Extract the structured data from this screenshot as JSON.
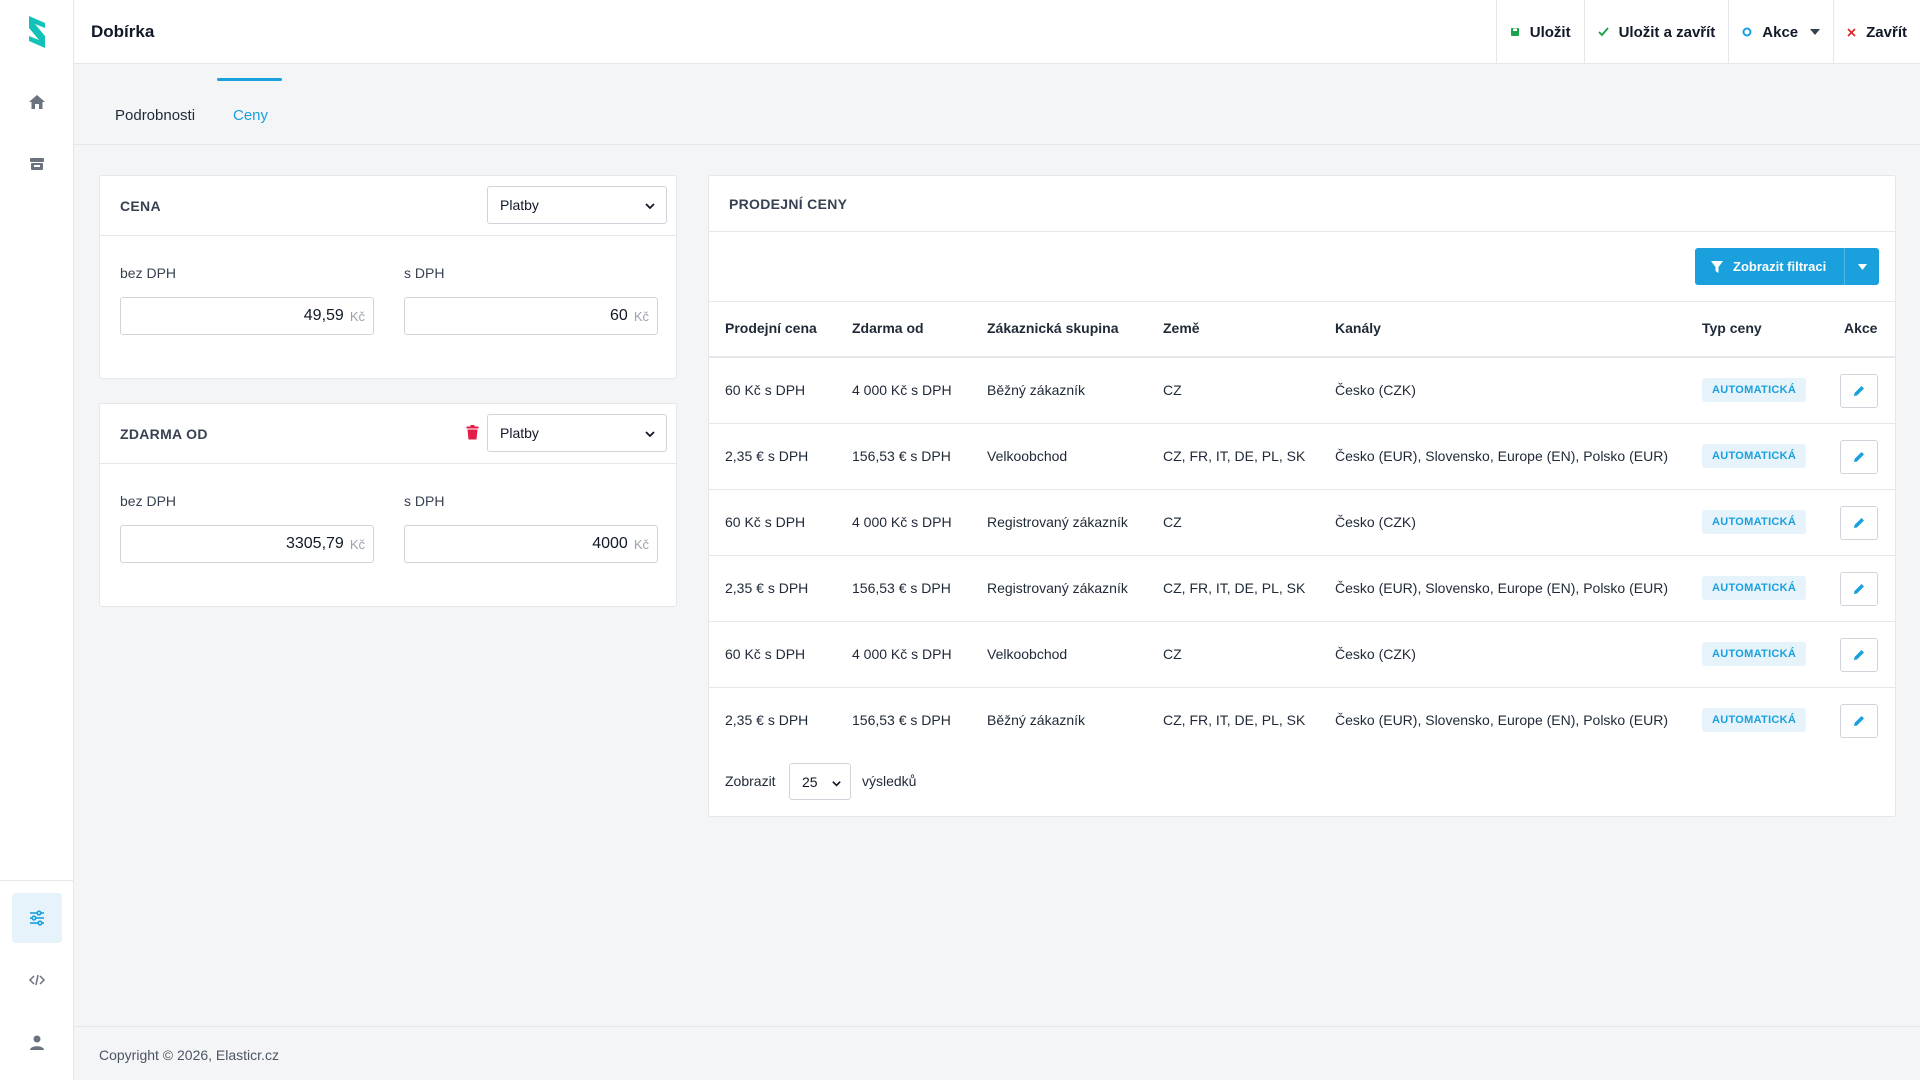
{
  "header": {
    "title": "Dobírka",
    "actions": {
      "save": "Uložit",
      "save_close": "Uložit a zavřít",
      "actions": "Akce",
      "close": "Zavřít"
    }
  },
  "tabs": [
    {
      "label": "Podrobnosti",
      "active": false
    },
    {
      "label": "Ceny",
      "active": true
    }
  ],
  "price_card": {
    "title": "CENA",
    "select": "Platby",
    "net_label": "bez DPH",
    "gross_label": "s DPH",
    "net_value": "49,59",
    "gross_value": "60",
    "unit": "Kč"
  },
  "free_card": {
    "title": "ZDARMA OD",
    "select": "Platby",
    "net_label": "bez DPH",
    "gross_label": "s DPH",
    "net_value": "3305,79",
    "gross_value": "4000",
    "unit": "Kč"
  },
  "sales_prices": {
    "title": "PRODEJNÍ CENY",
    "filter_button": "Zobrazit filtraci",
    "columns": [
      "Prodejní cena",
      "Zdarma od",
      "Zákaznická skupina",
      "Země",
      "Kanály",
      "Typ ceny",
      "Akce"
    ],
    "rows": [
      {
        "price": "60 Kč s DPH",
        "free_from": "4 000 Kč s DPH",
        "group": "Běžný zákazník",
        "countries": "CZ",
        "channels": "Česko (CZK)",
        "type": "AUTOMATICKÁ"
      },
      {
        "price": "2,35 € s DPH",
        "free_from": "156,53 € s DPH",
        "group": "Velkoobchod",
        "countries": "CZ, FR, IT, DE, PL, SK",
        "channels": "Česko (EUR), Slovensko, Europe (EN), Polsko (EUR)",
        "type": "AUTOMATICKÁ"
      },
      {
        "price": "60 Kč s DPH",
        "free_from": "4 000 Kč s DPH",
        "group": "Registrovaný zákazník",
        "countries": "CZ",
        "channels": "Česko (CZK)",
        "type": "AUTOMATICKÁ"
      },
      {
        "price": "2,35 € s DPH",
        "free_from": "156,53 € s DPH",
        "group": "Registrovaný zákazník",
        "countries": "CZ, FR, IT, DE, PL, SK",
        "channels": "Česko (EUR), Slovensko, Europe (EN), Polsko (EUR)",
        "type": "AUTOMATICKÁ"
      },
      {
        "price": "60 Kč s DPH",
        "free_from": "4 000 Kč s DPH",
        "group": "Velkoobchod",
        "countries": "CZ",
        "channels": "Česko (CZK)",
        "type": "AUTOMATICKÁ"
      },
      {
        "price": "2,35 € s DPH",
        "free_from": "156,53 € s DPH",
        "group": "Běžný zákazník",
        "countries": "CZ, FR, IT, DE, PL, SK",
        "channels": "Česko (EUR), Slovensko, Europe (EN), Polsko (EUR)",
        "type": "AUTOMATICKÁ"
      }
    ],
    "pagination": {
      "prefix": "Zobrazit",
      "value": "25",
      "suffix": "výsledků"
    }
  },
  "footer": {
    "copyright": "Copyright © 2026, Elasticr.cz"
  },
  "colors": {
    "accent": "#1aa0dd",
    "save_icon": "#16a34a",
    "close_icon": "#dc2626",
    "trash_icon": "#e11d48"
  },
  "icons": [
    "logo-icon",
    "home-icon",
    "store-icon",
    "sliders-icon",
    "code-icon",
    "user-icon",
    "save-icon",
    "check-icon",
    "circle-icon",
    "close-icon",
    "trash-icon",
    "filter-icon",
    "pencil-icon",
    "chevron-down-icon"
  ]
}
